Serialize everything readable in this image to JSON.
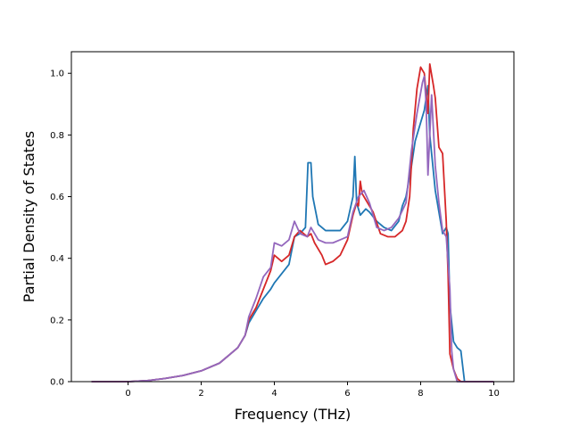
{
  "chart_data": {
    "type": "line",
    "title": "",
    "xlabel": "Frequency (THz)",
    "ylabel": "Partial Density of States",
    "xlim": [
      -1.55,
      10.55
    ],
    "ylim": [
      0.0,
      1.07
    ],
    "xticks": [
      0,
      2,
      4,
      6,
      8,
      10
    ],
    "yticks": [
      0.0,
      0.2,
      0.4,
      0.6,
      0.8,
      1.0
    ],
    "ytick_labels": [
      "0.0",
      "0.2",
      "0.4",
      "0.6",
      "0.8",
      "1.0"
    ],
    "grid": false,
    "legend": "none",
    "series": [
      {
        "color": "#1f77b4",
        "points": [
          [
            -1.0,
            0.0
          ],
          [
            0.0,
            0.0
          ],
          [
            0.5,
            0.003
          ],
          [
            1.0,
            0.01
          ],
          [
            1.5,
            0.02
          ],
          [
            2.0,
            0.035
          ],
          [
            2.5,
            0.06
          ],
          [
            3.0,
            0.11
          ],
          [
            3.2,
            0.15
          ],
          [
            3.3,
            0.19
          ],
          [
            3.5,
            0.23
          ],
          [
            3.7,
            0.27
          ],
          [
            3.9,
            0.3
          ],
          [
            4.0,
            0.32
          ],
          [
            4.2,
            0.35
          ],
          [
            4.4,
            0.38
          ],
          [
            4.55,
            0.47
          ],
          [
            4.7,
            0.48
          ],
          [
            4.85,
            0.5
          ],
          [
            4.92,
            0.71
          ],
          [
            5.0,
            0.71
          ],
          [
            5.05,
            0.6
          ],
          [
            5.2,
            0.51
          ],
          [
            5.4,
            0.49
          ],
          [
            5.6,
            0.49
          ],
          [
            5.8,
            0.49
          ],
          [
            6.0,
            0.52
          ],
          [
            6.15,
            0.6
          ],
          [
            6.2,
            0.73
          ],
          [
            6.25,
            0.58
          ],
          [
            6.35,
            0.54
          ],
          [
            6.5,
            0.56
          ],
          [
            6.6,
            0.55
          ],
          [
            6.8,
            0.52
          ],
          [
            7.0,
            0.5
          ],
          [
            7.2,
            0.49
          ],
          [
            7.4,
            0.52
          ],
          [
            7.5,
            0.57
          ],
          [
            7.6,
            0.6
          ],
          [
            7.75,
            0.7
          ],
          [
            7.85,
            0.78
          ],
          [
            8.0,
            0.84
          ],
          [
            8.1,
            0.88
          ],
          [
            8.2,
            0.96
          ],
          [
            8.25,
            0.8
          ],
          [
            8.3,
            0.74
          ],
          [
            8.4,
            0.62
          ],
          [
            8.5,
            0.55
          ],
          [
            8.6,
            0.48
          ],
          [
            8.7,
            0.5
          ],
          [
            8.75,
            0.48
          ],
          [
            8.8,
            0.25
          ],
          [
            8.9,
            0.13
          ],
          [
            9.0,
            0.11
          ],
          [
            9.1,
            0.1
          ],
          [
            9.2,
            0.0
          ],
          [
            10.0,
            0.0
          ]
        ]
      },
      {
        "color": "#d62728",
        "points": [
          [
            -1.0,
            0.0
          ],
          [
            0.0,
            0.0
          ],
          [
            0.5,
            0.003
          ],
          [
            1.0,
            0.01
          ],
          [
            1.5,
            0.02
          ],
          [
            2.0,
            0.035
          ],
          [
            2.5,
            0.06
          ],
          [
            3.0,
            0.11
          ],
          [
            3.2,
            0.15
          ],
          [
            3.3,
            0.2
          ],
          [
            3.5,
            0.24
          ],
          [
            3.7,
            0.3
          ],
          [
            3.9,
            0.36
          ],
          [
            4.0,
            0.41
          ],
          [
            4.2,
            0.39
          ],
          [
            4.4,
            0.41
          ],
          [
            4.55,
            0.47
          ],
          [
            4.7,
            0.49
          ],
          [
            4.9,
            0.47
          ],
          [
            5.0,
            0.48
          ],
          [
            5.1,
            0.45
          ],
          [
            5.3,
            0.41
          ],
          [
            5.4,
            0.38
          ],
          [
            5.6,
            0.39
          ],
          [
            5.8,
            0.41
          ],
          [
            6.0,
            0.46
          ],
          [
            6.15,
            0.54
          ],
          [
            6.25,
            0.58
          ],
          [
            6.3,
            0.57
          ],
          [
            6.35,
            0.65
          ],
          [
            6.4,
            0.61
          ],
          [
            6.5,
            0.59
          ],
          [
            6.7,
            0.55
          ],
          [
            6.9,
            0.48
          ],
          [
            7.1,
            0.47
          ],
          [
            7.3,
            0.47
          ],
          [
            7.5,
            0.49
          ],
          [
            7.6,
            0.52
          ],
          [
            7.7,
            0.6
          ],
          [
            7.8,
            0.82
          ],
          [
            7.9,
            0.95
          ],
          [
            8.0,
            1.02
          ],
          [
            8.1,
            1.0
          ],
          [
            8.2,
            0.87
          ],
          [
            8.25,
            1.03
          ],
          [
            8.35,
            0.96
          ],
          [
            8.4,
            0.92
          ],
          [
            8.5,
            0.76
          ],
          [
            8.6,
            0.74
          ],
          [
            8.7,
            0.52
          ],
          [
            8.75,
            0.35
          ],
          [
            8.8,
            0.09
          ],
          [
            8.9,
            0.04
          ],
          [
            9.0,
            0.01
          ],
          [
            9.1,
            0.0
          ],
          [
            10.0,
            0.0
          ]
        ]
      },
      {
        "color": "#9467bd",
        "points": [
          [
            -1.0,
            0.0
          ],
          [
            0.0,
            0.0
          ],
          [
            0.5,
            0.003
          ],
          [
            1.0,
            0.01
          ],
          [
            1.5,
            0.02
          ],
          [
            2.0,
            0.035
          ],
          [
            2.5,
            0.06
          ],
          [
            3.0,
            0.11
          ],
          [
            3.2,
            0.15
          ],
          [
            3.3,
            0.21
          ],
          [
            3.5,
            0.27
          ],
          [
            3.7,
            0.34
          ],
          [
            3.9,
            0.37
          ],
          [
            4.0,
            0.45
          ],
          [
            4.2,
            0.44
          ],
          [
            4.4,
            0.46
          ],
          [
            4.55,
            0.52
          ],
          [
            4.7,
            0.48
          ],
          [
            4.9,
            0.47
          ],
          [
            5.0,
            0.5
          ],
          [
            5.2,
            0.46
          ],
          [
            5.4,
            0.45
          ],
          [
            5.6,
            0.45
          ],
          [
            5.8,
            0.46
          ],
          [
            6.0,
            0.47
          ],
          [
            6.15,
            0.55
          ],
          [
            6.3,
            0.6
          ],
          [
            6.45,
            0.62
          ],
          [
            6.6,
            0.58
          ],
          [
            6.8,
            0.5
          ],
          [
            7.0,
            0.49
          ],
          [
            7.2,
            0.5
          ],
          [
            7.4,
            0.53
          ],
          [
            7.6,
            0.58
          ],
          [
            7.75,
            0.75
          ],
          [
            7.9,
            0.87
          ],
          [
            8.05,
            0.97
          ],
          [
            8.1,
            0.99
          ],
          [
            8.15,
            0.9
          ],
          [
            8.2,
            0.67
          ],
          [
            8.3,
            0.93
          ],
          [
            8.4,
            0.7
          ],
          [
            8.5,
            0.58
          ],
          [
            8.6,
            0.49
          ],
          [
            8.7,
            0.47
          ],
          [
            8.8,
            0.3
          ],
          [
            8.85,
            0.1
          ],
          [
            8.9,
            0.04
          ],
          [
            9.0,
            0.0
          ],
          [
            10.0,
            0.0
          ]
        ]
      }
    ]
  }
}
